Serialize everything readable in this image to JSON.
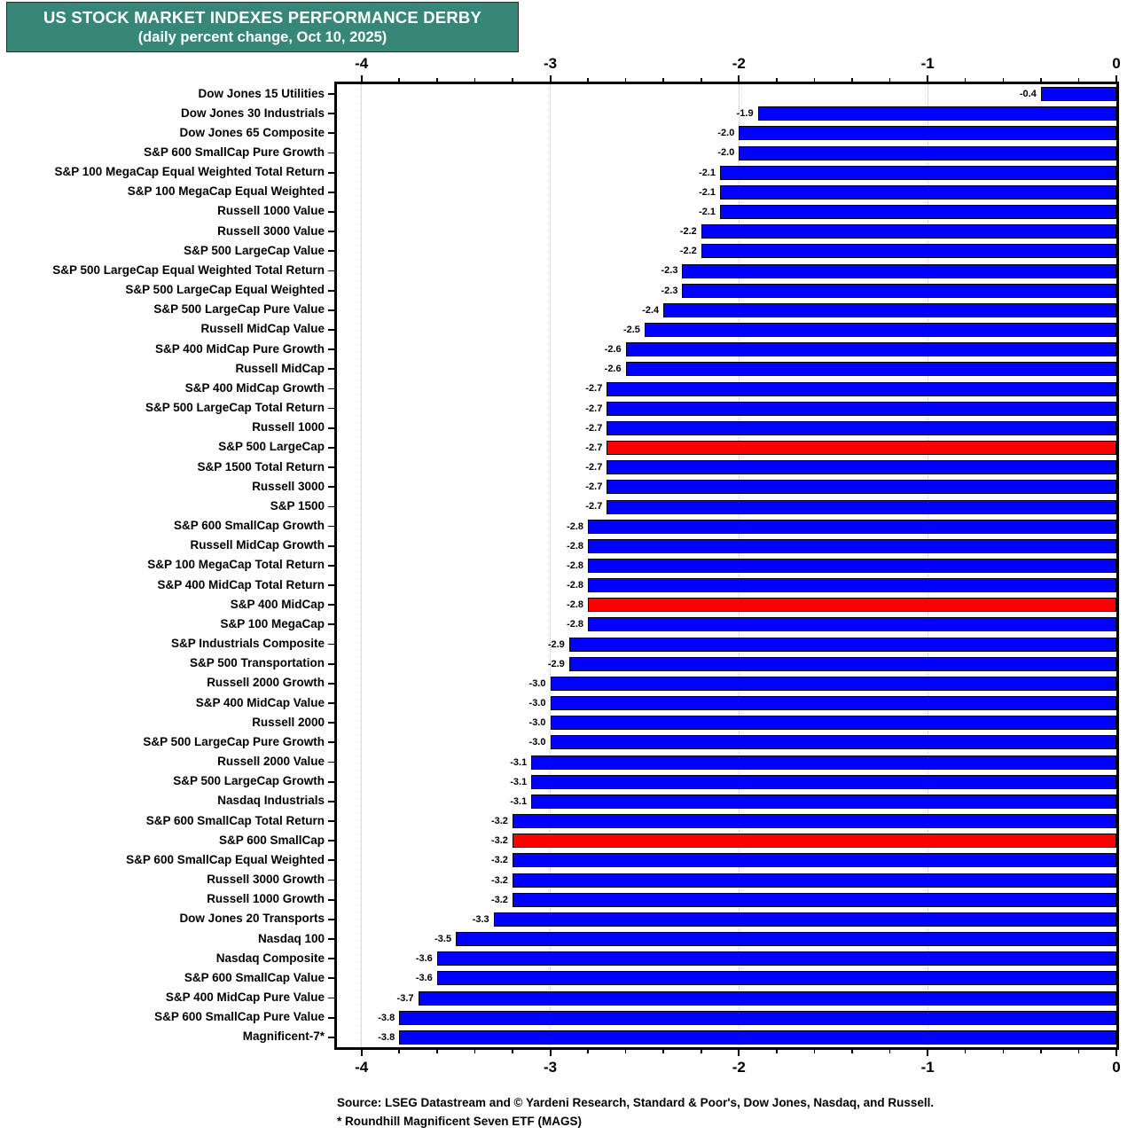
{
  "title": {
    "line1": "US STOCK MARKET INDEXES PERFORMANCE DERBY",
    "line2": "(daily percent change, Oct 10, 2025)"
  },
  "footer": {
    "line1": "Source: LSEG Datastream and © Yardeni Research, Standard & Poor's, Dow Jones, Nasdaq, and Russell.",
    "line2": "* Roundhill Magnificent Seven ETF (MAGS)"
  },
  "colors": {
    "title_bg": "#378779",
    "bar_blue": "#0000ff",
    "bar_red": "#ff0000",
    "gridline": "#c0c0c0"
  },
  "chart_data": {
    "type": "bar",
    "orientation": "horizontal-bars-anchored-right",
    "title": "US STOCK MARKET INDEXES PERFORMANCE DERBY",
    "subtitle": "(daily percent change, Oct 10, 2025)",
    "value_unit": "percent",
    "xlim": [
      -4.13,
      0
    ],
    "x_ticks": [
      -4,
      -3,
      -2,
      -1,
      0
    ],
    "x_minor_tick_step": 0.2,
    "grid": "vertical dotted lines at major ticks",
    "legend_position": "none",
    "categories": [
      "Dow Jones 15 Utilities",
      "Dow Jones 30 Industrials",
      "Dow Jones 65 Composite",
      "S&P 600 SmallCap Pure Growth",
      "S&P 100 MegaCap Equal Weighted Total Return",
      "S&P 100 MegaCap Equal Weighted",
      "Russell 1000 Value",
      "Russell 3000 Value",
      "S&P 500 LargeCap Value",
      "S&P 500 LargeCap Equal Weighted Total Return",
      "S&P 500 LargeCap Equal Weighted",
      "S&P 500 LargeCap Pure Value",
      "Russell MidCap Value",
      "S&P 400 MidCap Pure Growth",
      "Russell MidCap",
      "S&P 400 MidCap Growth",
      "S&P 500 LargeCap Total Return",
      "Russell 1000",
      "S&P 500 LargeCap",
      "S&P 1500 Total Return",
      "Russell 3000",
      "S&P 1500",
      "S&P 600 SmallCap Growth",
      "Russell MidCap Growth",
      "S&P 100 MegaCap Total Return",
      "S&P 400 MidCap Total Return",
      "S&P 400 MidCap",
      "S&P 100 MegaCap",
      "S&P Industrials Composite",
      "S&P 500 Transportation",
      "Russell 2000 Growth",
      "S&P 400 MidCap Value",
      "Russell 2000",
      "S&P 500 LargeCap Pure Growth",
      "Russell 2000 Value",
      "S&P 500 LargeCap Growth",
      "Nasdaq Industrials",
      "S&P 600 SmallCap Total Return",
      "S&P 600 SmallCap",
      "S&P 600 SmallCap Equal Weighted",
      "Russell 3000 Growth",
      "Russell 1000 Growth",
      "Dow Jones 20 Transports",
      "Nasdaq 100",
      "Nasdaq Composite",
      "S&P 600 SmallCap Value",
      "S&P 400 MidCap Pure Value",
      "S&P 600 SmallCap Pure Value",
      "Magnificent-7*"
    ],
    "values": [
      -0.4,
      -1.9,
      -2.0,
      -2.0,
      -2.1,
      -2.1,
      -2.1,
      -2.2,
      -2.2,
      -2.3,
      -2.3,
      -2.4,
      -2.5,
      -2.6,
      -2.6,
      -2.7,
      -2.7,
      -2.7,
      -2.7,
      -2.7,
      -2.7,
      -2.7,
      -2.8,
      -2.8,
      -2.8,
      -2.8,
      -2.8,
      -2.8,
      -2.9,
      -2.9,
      -3.0,
      -3.0,
      -3.0,
      -3.0,
      -3.1,
      -3.1,
      -3.1,
      -3.2,
      -3.2,
      -3.2,
      -3.2,
      -3.2,
      -3.3,
      -3.5,
      -3.6,
      -3.6,
      -3.7,
      -3.8,
      -3.8
    ],
    "highlight_indices": [
      18,
      26,
      38
    ],
    "highlighted_categories": [
      "S&P 500 LargeCap",
      "S&P 400 MidCap",
      "S&P 600 SmallCap"
    ]
  }
}
